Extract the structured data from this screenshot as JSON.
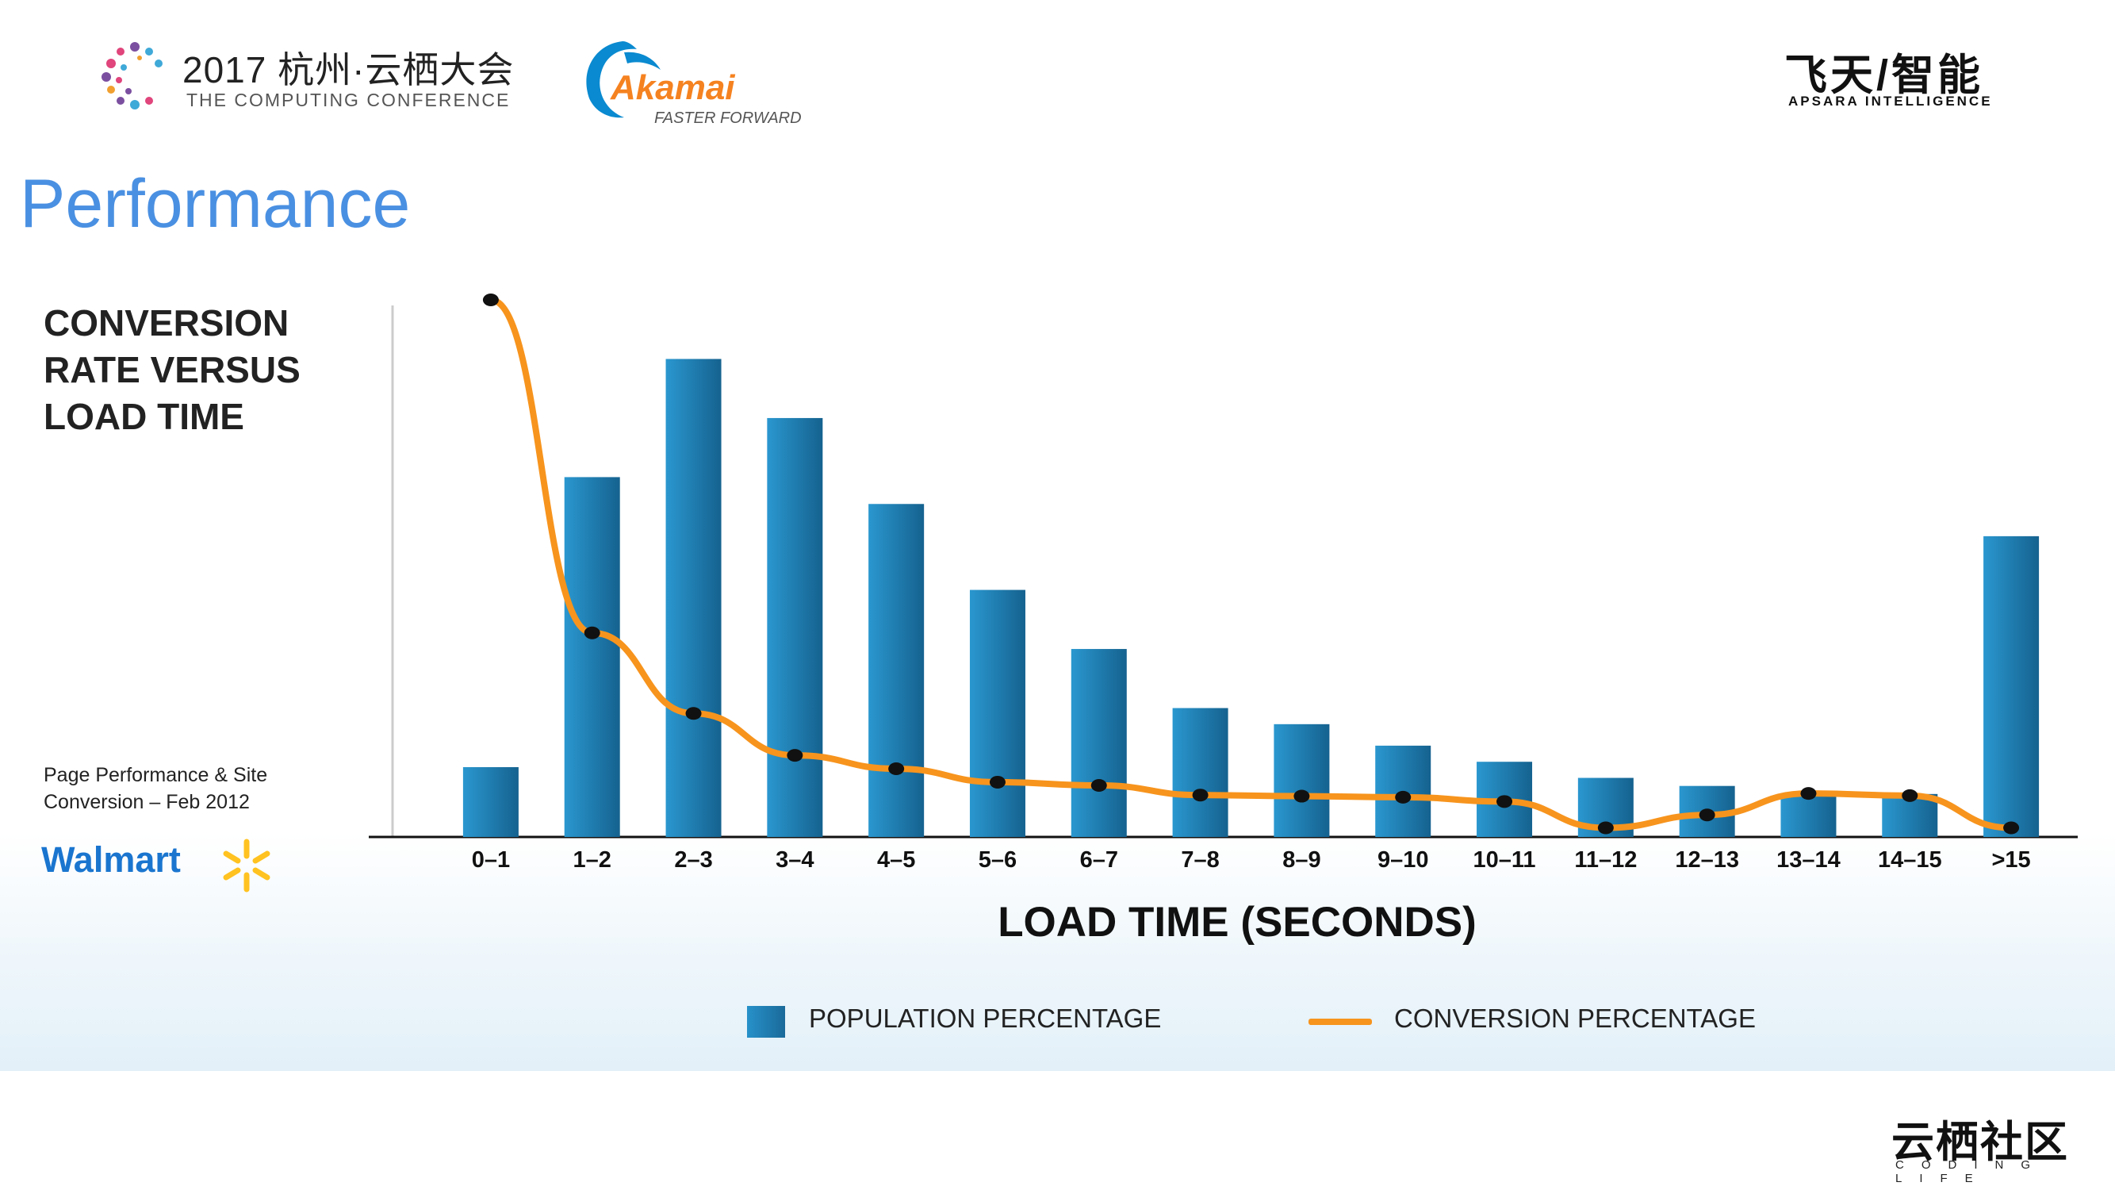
{
  "header": {
    "conference_title": "2017 杭州·云栖大会",
    "conference_subtitle": "THE COMPUTING CONFERENCE",
    "akamai_name": "Akamai",
    "akamai_tagline": "FASTER FORWARD",
    "apsara_title": "飞天/智能",
    "apsara_subtitle": "APSARA INTELLIGENCE"
  },
  "page_title": "Performance",
  "chart_heading": "CONVERSION RATE VERSUS LOAD TIME",
  "source_note": "Page  Performance & Site Conversion – Feb 2012",
  "walmart": "Walmart",
  "footer": {
    "community_title": "云栖社区",
    "community_subtitle": "CODING LIFE"
  },
  "colors": {
    "bar": "#2187c0",
    "bar_dark": "#155f8c",
    "line": "#f7941d",
    "marker": "#111111",
    "title": "#4a90e2"
  },
  "chart_data": {
    "type": "bar",
    "title": "CONVERSION RATE VERSUS LOAD TIME",
    "xlabel": "LOAD TIME (SECONDS)",
    "ylabel": "",
    "categories": [
      "0–1",
      "1–2",
      "2–3",
      "3–4",
      "4–5",
      "5–6",
      "6–7",
      "7–8",
      "8–9",
      "9–10",
      "10–11",
      "11–12",
      "12–13",
      "13–14",
      "14–15",
      ">15"
    ],
    "ylim": [
      0,
      100
    ],
    "series": [
      {
        "name": "POPULATION PERCENTAGE",
        "type": "bar",
        "values": [
          13,
          67,
          89,
          78,
          62,
          46,
          35,
          24,
          21,
          17,
          14,
          11,
          9.5,
          8,
          8,
          56
        ]
      },
      {
        "name": "CONVERSION PERCENTAGE",
        "type": "line",
        "values": [
          100,
          38,
          23,
          15.2,
          12.7,
          10.2,
          9.6,
          7.8,
          7.6,
          7.4,
          6.6,
          1.7,
          4.1,
          8.1,
          7.7,
          1.7
        ]
      }
    ],
    "legend": [
      "POPULATION PERCENTAGE",
      "CONVERSION PERCENTAGE"
    ],
    "legend_position": "bottom",
    "grid": false
  }
}
